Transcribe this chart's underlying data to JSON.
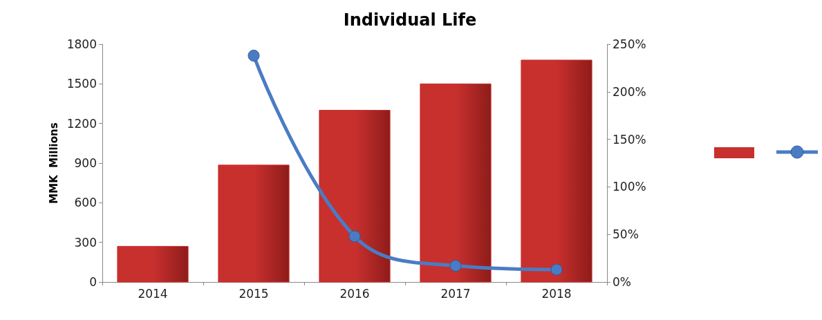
{
  "chart_data": {
    "type": "bar",
    "title": "Individual Life",
    "ylabel": "MMK  Millions",
    "categories": [
      "2014",
      "2015",
      "2016",
      "2017",
      "2018"
    ],
    "series": [
      {
        "type": "bar",
        "color": "#c8302e",
        "values": [
          270,
          885,
          1300,
          1500,
          1680
        ]
      },
      {
        "type": "line",
        "axis": "y2",
        "color": "#4a7cc4",
        "marker": "circle",
        "values": [
          null,
          238,
          48,
          17,
          13
        ]
      }
    ],
    "ylim": [
      0,
      1800
    ],
    "yticks": [
      0,
      300,
      600,
      900,
      1200,
      1500,
      1800
    ],
    "y2lim": [
      0,
      250
    ],
    "y2ticks": [
      {
        "value": 0,
        "label": "0%"
      },
      {
        "value": 50,
        "label": "50%"
      },
      {
        "value": 100,
        "label": "100%"
      },
      {
        "value": 150,
        "label": "150%"
      },
      {
        "value": 200,
        "label": "200%"
      },
      {
        "value": 250,
        "label": "250%"
      }
    ],
    "grid": false
  }
}
